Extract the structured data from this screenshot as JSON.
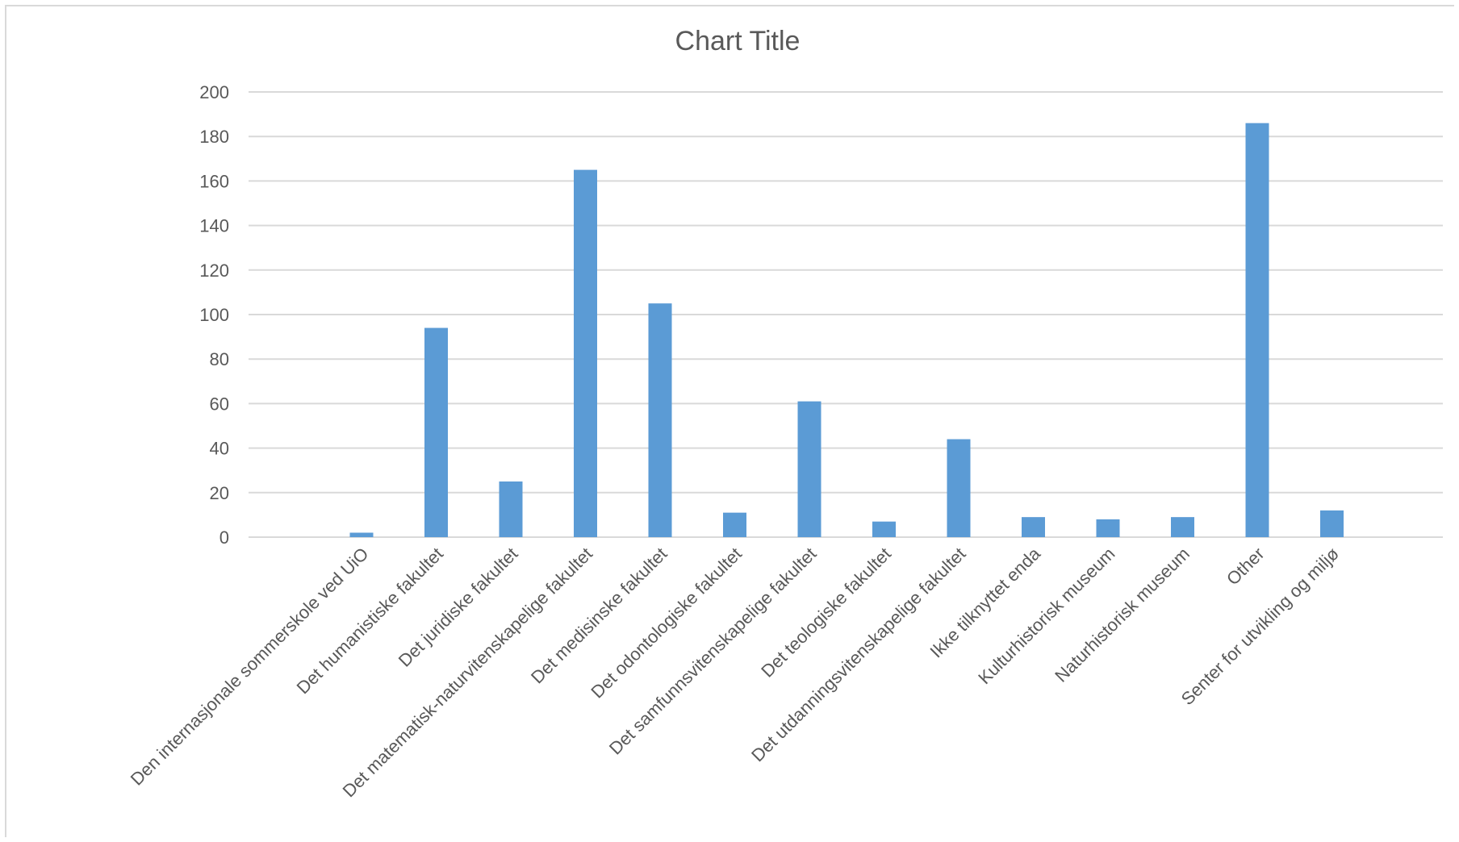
{
  "chart_data": {
    "type": "bar",
    "title": "Chart Title",
    "xlabel": "",
    "ylabel": "",
    "ylim": [
      0,
      200
    ],
    "yticks": [
      0,
      20,
      40,
      60,
      80,
      100,
      120,
      140,
      160,
      180,
      200
    ],
    "grid": true,
    "legend": "none",
    "bar_color": "#5b9bd5",
    "categories": [
      "Den internasjonale sommerskole ved UiO",
      "Det humanistiske fakultet",
      "Det juridiske fakultet",
      "Det matematisk-naturvitenskapelige fakultet",
      "Det medisinske fakultet",
      "Det odontologiske fakultet",
      "Det samfunnsvitenskapelige fakultet",
      "Det teologiske fakultet",
      "Det utdanningsvitenskapelige fakultet",
      "Ikke tilknyttet enda",
      "Kulturhistorisk museum",
      "Naturhistorisk museum",
      "Other",
      "Senter for utvikling og miljø"
    ],
    "values": [
      2,
      94,
      25,
      165,
      105,
      11,
      61,
      7,
      44,
      9,
      8,
      9,
      186,
      12
    ]
  }
}
